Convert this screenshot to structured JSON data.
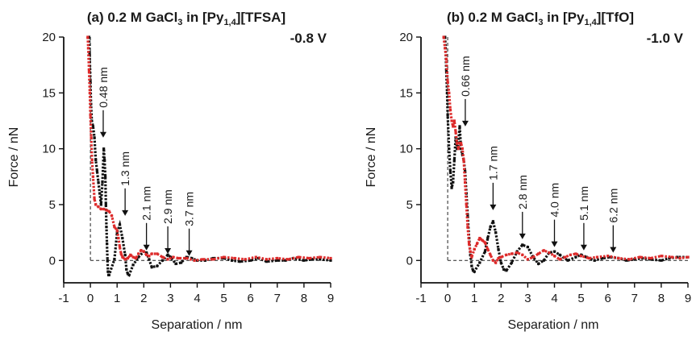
{
  "chart_data": [
    {
      "type": "scatter",
      "title": {
        "pre": "(a) 0.2 M GaCl",
        "sub1": "3",
        "mid": " in [Py",
        "sub2": "1,4",
        "post": "][TFSA]"
      },
      "voltage": "-0.8 V",
      "xlabel": "Separation / nm",
      "ylabel": "Force / nN",
      "xlim": [
        -1,
        9
      ],
      "ylim": [
        -2,
        20
      ],
      "xticks": [
        "-1",
        "0",
        "1",
        "2",
        "3",
        "4",
        "5",
        "6",
        "7",
        "8",
        "9"
      ],
      "yticks": [
        "0",
        "5",
        "10",
        "15",
        "20"
      ],
      "series": [
        {
          "color": "#111111",
          "points": [
            [
              -0.05,
              20
            ],
            [
              -0.03,
              18.5
            ],
            [
              0,
              16
            ],
            [
              0.02,
              14
            ],
            [
              0.05,
              12.5
            ],
            [
              0.1,
              12
            ],
            [
              0.15,
              11
            ],
            [
              0.2,
              9
            ],
            [
              0.25,
              8
            ],
            [
              0.3,
              7
            ],
            [
              0.35,
              6
            ],
            [
              0.4,
              5
            ],
            [
              0.45,
              7
            ],
            [
              0.5,
              10
            ],
            [
              0.53,
              9
            ],
            [
              0.56,
              7.5
            ],
            [
              0.58,
              5
            ],
            [
              0.6,
              3
            ],
            [
              0.62,
              1.5
            ],
            [
              0.64,
              0
            ],
            [
              0.66,
              -1
            ],
            [
              0.68,
              -1.3
            ],
            [
              0.7,
              -1.3
            ],
            [
              0.9,
              0.1
            ],
            [
              1.0,
              2.5
            ],
            [
              1.1,
              3.2
            ],
            [
              1.2,
              2
            ],
            [
              1.3,
              0.5
            ],
            [
              1.35,
              -0.8
            ],
            [
              1.4,
              -1.2
            ],
            [
              1.45,
              -1.3
            ],
            [
              1.6,
              -0.4
            ],
            [
              1.8,
              0.3
            ],
            [
              2.0,
              0.8
            ],
            [
              2.1,
              0.7
            ],
            [
              2.2,
              0.1
            ],
            [
              2.3,
              -0.6
            ],
            [
              2.5,
              -0.5
            ],
            [
              2.7,
              0
            ],
            [
              2.9,
              0.5
            ],
            [
              3.0,
              0.3
            ],
            [
              3.2,
              -0.3
            ],
            [
              3.4,
              -0.2
            ],
            [
              3.6,
              0.3
            ],
            [
              3.8,
              0.2
            ],
            [
              4.0,
              0
            ],
            [
              4.3,
              0
            ],
            [
              4.6,
              0.2
            ],
            [
              5.0,
              0.2
            ],
            [
              5.3,
              0
            ],
            [
              5.6,
              -0.1
            ],
            [
              6.0,
              0
            ],
            [
              6.3,
              0.2
            ],
            [
              6.6,
              -0.1
            ],
            [
              7.0,
              0
            ],
            [
              7.3,
              0
            ],
            [
              7.6,
              0.2
            ],
            [
              8.0,
              0
            ],
            [
              8.3,
              0.1
            ],
            [
              8.6,
              0.1
            ],
            [
              9.0,
              0
            ]
          ]
        },
        {
          "color": "#dd2a2a",
          "points": [
            [
              -0.1,
              20
            ],
            [
              -0.08,
              19
            ],
            [
              -0.05,
              17
            ],
            [
              -0.02,
              15
            ],
            [
              0,
              13
            ],
            [
              0.03,
              11
            ],
            [
              0.06,
              9
            ],
            [
              0.1,
              7.5
            ],
            [
              0.15,
              5.5
            ],
            [
              0.2,
              5
            ],
            [
              0.3,
              4.8
            ],
            [
              0.4,
              4.6
            ],
            [
              0.5,
              4.6
            ],
            [
              0.6,
              4.5
            ],
            [
              0.7,
              4.4
            ],
            [
              0.8,
              4
            ],
            [
              0.9,
              3
            ],
            [
              1.0,
              2.7
            ],
            [
              1.05,
              2
            ],
            [
              1.1,
              1.2
            ],
            [
              1.15,
              0.6
            ],
            [
              1.2,
              0.3
            ],
            [
              1.3,
              0.1
            ],
            [
              1.4,
              0.2
            ],
            [
              1.5,
              0.5
            ],
            [
              1.6,
              0.3
            ],
            [
              1.7,
              0.2
            ],
            [
              1.8,
              0.6
            ],
            [
              1.9,
              0.9
            ],
            [
              2.0,
              0.8
            ],
            [
              2.1,
              0.5
            ],
            [
              2.2,
              0.4
            ],
            [
              2.3,
              0.6
            ],
            [
              2.5,
              0.6
            ],
            [
              2.7,
              0.3
            ],
            [
              2.9,
              0.1
            ],
            [
              3.1,
              0.3
            ],
            [
              3.3,
              0.2
            ],
            [
              3.6,
              0.2
            ],
            [
              3.9,
              0
            ],
            [
              4.2,
              0.1
            ],
            [
              4.6,
              0.1
            ],
            [
              5.0,
              0.3
            ],
            [
              5.4,
              0.2
            ],
            [
              5.8,
              0.1
            ],
            [
              6.2,
              0.3
            ],
            [
              6.6,
              0.1
            ],
            [
              7.0,
              0.2
            ],
            [
              7.4,
              0.1
            ],
            [
              7.8,
              0.3
            ],
            [
              8.2,
              0.2
            ],
            [
              8.6,
              0.3
            ],
            [
              9.0,
              0.2
            ]
          ]
        }
      ],
      "annotations": [
        {
          "text": "0.48 nm",
          "x": 0.48,
          "y": 11
        },
        {
          "text": "1.3 nm",
          "x": 1.3,
          "y": 4
        },
        {
          "text": "2.1 nm",
          "x": 2.1,
          "y": 0.9
        },
        {
          "text": "2.9 nm",
          "x": 2.9,
          "y": 0.6
        },
        {
          "text": "3.7 nm",
          "x": 3.7,
          "y": 0.4
        }
      ]
    },
    {
      "type": "scatter",
      "title": {
        "pre": "(b) 0.2 M GaCl",
        "sub1": "3",
        "mid": " in [Py",
        "sub2": "1,4",
        "post": "][TfO]"
      },
      "voltage": "-1.0 V",
      "xlabel": "Separation / nm",
      "ylabel": "Force / nN",
      "xlim": [
        -1,
        9
      ],
      "ylim": [
        -2,
        20
      ],
      "xticks": [
        "-1",
        "0",
        "1",
        "2",
        "3",
        "4",
        "5",
        "6",
        "7",
        "8",
        "9"
      ],
      "yticks": [
        "0",
        "5",
        "10",
        "15",
        "20"
      ],
      "series": [
        {
          "color": "#111111",
          "points": [
            [
              -0.1,
              20
            ],
            [
              -0.08,
              19
            ],
            [
              -0.05,
              17
            ],
            [
              -0.02,
              15
            ],
            [
              0,
              13
            ],
            [
              0.05,
              10
            ],
            [
              0.1,
              8
            ],
            [
              0.15,
              6.5
            ],
            [
              0.2,
              7
            ],
            [
              0.25,
              9
            ],
            [
              0.3,
              11
            ],
            [
              0.35,
              10
            ],
            [
              0.4,
              10.5
            ],
            [
              0.45,
              12
            ],
            [
              0.5,
              10
            ],
            [
              0.55,
              9.5
            ],
            [
              0.6,
              9
            ],
            [
              0.65,
              8
            ],
            [
              0.7,
              6
            ],
            [
              0.75,
              4
            ],
            [
              0.8,
              2
            ],
            [
              0.85,
              0.5
            ],
            [
              0.9,
              -0.5
            ],
            [
              0.95,
              -0.9
            ],
            [
              1.0,
              -1
            ],
            [
              1.2,
              -0.2
            ],
            [
              1.4,
              0.8
            ],
            [
              1.5,
              2
            ],
            [
              1.6,
              3
            ],
            [
              1.7,
              3.5
            ],
            [
              1.8,
              2.5
            ],
            [
              1.9,
              1
            ],
            [
              2.0,
              -0.2
            ],
            [
              2.1,
              -0.8
            ],
            [
              2.2,
              -0.9
            ],
            [
              2.4,
              -0.2
            ],
            [
              2.6,
              0.8
            ],
            [
              2.8,
              1.4
            ],
            [
              3.0,
              1.2
            ],
            [
              3.2,
              0.3
            ],
            [
              3.4,
              -0.3
            ],
            [
              3.6,
              0
            ],
            [
              3.8,
              0.7
            ],
            [
              4.0,
              0.8
            ],
            [
              4.2,
              0.5
            ],
            [
              4.5,
              0
            ],
            [
              4.8,
              0.3
            ],
            [
              5.0,
              0.5
            ],
            [
              5.2,
              0.3
            ],
            [
              5.5,
              0
            ],
            [
              5.8,
              0.2
            ],
            [
              6.1,
              0.3
            ],
            [
              6.4,
              0.2
            ],
            [
              6.7,
              0
            ],
            [
              7.0,
              0.1
            ],
            [
              7.3,
              0.2
            ],
            [
              7.6,
              0.1
            ],
            [
              8.0,
              0
            ],
            [
              8.3,
              0.2
            ],
            [
              8.6,
              0.3
            ],
            [
              9.0,
              0.3
            ]
          ]
        },
        {
          "color": "#dd2a2a",
          "points": [
            [
              -0.15,
              20
            ],
            [
              -0.1,
              19
            ],
            [
              -0.05,
              18
            ],
            [
              0,
              16
            ],
            [
              0.05,
              15
            ],
            [
              0.1,
              13.5
            ],
            [
              0.15,
              12.5
            ],
            [
              0.2,
              12
            ],
            [
              0.25,
              12.5
            ],
            [
              0.3,
              11.5
            ],
            [
              0.35,
              10.5
            ],
            [
              0.4,
              10
            ],
            [
              0.45,
              10.5
            ],
            [
              0.5,
              10.5
            ],
            [
              0.55,
              10
            ],
            [
              0.6,
              9
            ],
            [
              0.65,
              7
            ],
            [
              0.7,
              5
            ],
            [
              0.75,
              3
            ],
            [
              0.8,
              1.5
            ],
            [
              0.85,
              0.8
            ],
            [
              0.9,
              0.3
            ],
            [
              1.0,
              1
            ],
            [
              1.1,
              1.5
            ],
            [
              1.2,
              2
            ],
            [
              1.3,
              1.8
            ],
            [
              1.4,
              1.6
            ],
            [
              1.5,
              1
            ],
            [
              1.6,
              0.5
            ],
            [
              1.7,
              0
            ],
            [
              1.8,
              -0.2
            ],
            [
              1.9,
              0.2
            ],
            [
              2.0,
              0.3
            ],
            [
              2.2,
              0.5
            ],
            [
              2.4,
              0.6
            ],
            [
              2.6,
              0.7
            ],
            [
              2.8,
              0.5
            ],
            [
              3.0,
              0.1
            ],
            [
              3.2,
              0.3
            ],
            [
              3.4,
              0.6
            ],
            [
              3.6,
              0.9
            ],
            [
              3.8,
              0.7
            ],
            [
              4.0,
              0.4
            ],
            [
              4.2,
              0.1
            ],
            [
              4.4,
              0.3
            ],
            [
              4.6,
              0.5
            ],
            [
              4.8,
              0.6
            ],
            [
              5.0,
              0.4
            ],
            [
              5.3,
              0.2
            ],
            [
              5.6,
              0.3
            ],
            [
              6.0,
              0.4
            ],
            [
              6.4,
              0.2
            ],
            [
              6.8,
              0.1
            ],
            [
              7.2,
              0.3
            ],
            [
              7.6,
              0.2
            ],
            [
              8.0,
              0.4
            ],
            [
              8.4,
              0.3
            ],
            [
              8.7,
              0.2
            ],
            [
              9.0,
              0.3
            ]
          ]
        }
      ],
      "annotations": [
        {
          "text": "0.66 nm",
          "x": 0.66,
          "y": 12
        },
        {
          "text": "1.7 nm",
          "x": 1.7,
          "y": 4.5
        },
        {
          "text": "2.8 nm",
          "x": 2.8,
          "y": 1.9
        },
        {
          "text": "4.0 nm",
          "x": 4.0,
          "y": 1.2
        },
        {
          "text": "5.1 nm",
          "x": 5.1,
          "y": 0.9
        },
        {
          "text": "6.2 nm",
          "x": 6.2,
          "y": 0.7
        }
      ]
    }
  ]
}
